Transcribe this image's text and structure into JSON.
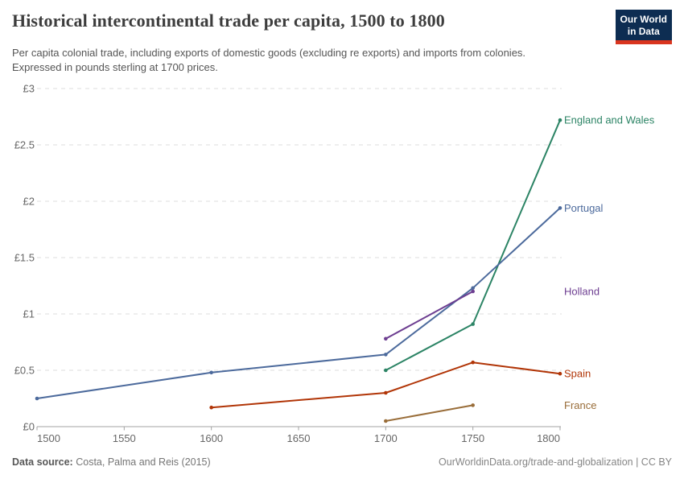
{
  "header": {
    "title": "Historical intercontinental trade per capita, 1500 to 1800",
    "subtitle_line1": "Per capita colonial trade, including exports of domestic goods (excluding re exports) and imports from colonies.",
    "subtitle_line2": "Expressed in pounds sterling at 1700 prices."
  },
  "logo": {
    "line1": "Our World",
    "line2": "in Data",
    "bg_color": "#0d2d52",
    "stripe_color": "#d9351f"
  },
  "chart_data": {
    "type": "line",
    "title": "Historical intercontinental trade per capita, 1500 to 1800",
    "xlabel": "",
    "ylabel": "",
    "x_domain": [
      1500,
      1800
    ],
    "y_domain": [
      0,
      3
    ],
    "x_ticks": [
      1500,
      1550,
      1600,
      1650,
      1700,
      1750,
      1800
    ],
    "y_ticks": [
      0,
      0.5,
      1,
      1.5,
      2,
      2.5,
      3
    ],
    "y_tick_labels": [
      "£0",
      "£0.5",
      "£1",
      "£1.5",
      "£2",
      "£2.5",
      "£3"
    ],
    "grid": "horizontal dashed",
    "legend_position": "right edge labels",
    "series": [
      {
        "name": "England and Wales",
        "color": "#2C8465",
        "points": [
          [
            1700,
            0.5
          ],
          [
            1750,
            0.91
          ],
          [
            1800,
            2.72
          ]
        ]
      },
      {
        "name": "Portugal",
        "color": "#4C6A9C",
        "points": [
          [
            1500,
            0.25
          ],
          [
            1600,
            0.48
          ],
          [
            1700,
            0.64
          ],
          [
            1750,
            1.23
          ],
          [
            1800,
            1.94
          ]
        ]
      },
      {
        "name": "Holland",
        "color": "#6D3E91",
        "points": [
          [
            1700,
            0.78
          ],
          [
            1750,
            1.2
          ]
        ]
      },
      {
        "name": "Spain",
        "color": "#B13507",
        "points": [
          [
            1600,
            0.17
          ],
          [
            1700,
            0.3
          ],
          [
            1750,
            0.57
          ],
          [
            1800,
            0.47
          ]
        ]
      },
      {
        "name": "France",
        "color": "#996D39",
        "points": [
          [
            1700,
            0.05
          ],
          [
            1750,
            0.19
          ]
        ]
      }
    ]
  },
  "footer": {
    "source_label": "Data source:",
    "source_text": "Costa, Palma and Reis (2015)",
    "license_text": "OurWorldinData.org/trade-and-globalization | CC BY"
  },
  "colors": {
    "grid": "#dcdcdc",
    "axis": "#a3a3a3",
    "tick_text": "#666666"
  }
}
